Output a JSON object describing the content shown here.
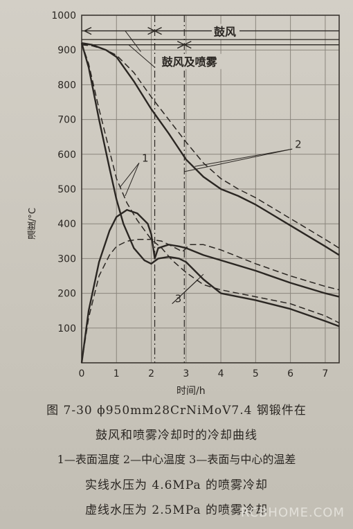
{
  "chart_data": {
    "type": "line",
    "xlabel": "时间/h",
    "ylabel": "温度/°C",
    "xlim": [
      0,
      7.4
    ],
    "ylim": [
      0,
      1000
    ],
    "x_ticks": [
      "0",
      "1",
      "2",
      "3",
      "4",
      "5",
      "6",
      "7"
    ],
    "y_ticks": [
      "100",
      "200",
      "300",
      "400",
      "500",
      "600",
      "700",
      "800",
      "900",
      "1000"
    ],
    "grid": true,
    "phase_labels": {
      "blow": "鼓风",
      "blow_spray": "鼓风及喷雾"
    },
    "curve_labels": [
      "1",
      "2",
      "3"
    ],
    "series": [
      {
        "curve": "1",
        "style": "solid",
        "x": [
          0,
          0.2,
          0.5,
          0.8,
          1.0,
          1.2,
          1.5,
          1.8,
          2.0,
          2.2,
          2.5,
          2.8,
          3.0,
          3.5,
          4.0,
          5.0,
          6.0,
          7.0,
          7.4
        ],
        "y": [
          920,
          850,
          700,
          560,
          470,
          400,
          330,
          295,
          285,
          300,
          305,
          300,
          290,
          240,
          200,
          180,
          155,
          120,
          105
        ]
      },
      {
        "curve": "1",
        "style": "dashed",
        "x": [
          0,
          0.2,
          0.5,
          0.8,
          1.0,
          1.3,
          1.6,
          2.0,
          2.3,
          2.6,
          3.0,
          3.5,
          4.0,
          5.0,
          6.0,
          7.0,
          7.4
        ],
        "y": [
          920,
          860,
          730,
          610,
          530,
          460,
          410,
          355,
          330,
          295,
          260,
          225,
          210,
          190,
          170,
          135,
          115
        ]
      },
      {
        "curve": "2",
        "style": "solid",
        "x": [
          0,
          0.3,
          0.7,
          1.0,
          1.5,
          2.0,
          2.5,
          3.0,
          3.5,
          4.0,
          4.5,
          5.0,
          5.5,
          6.0,
          6.5,
          7.0,
          7.4
        ],
        "y": [
          920,
          915,
          900,
          880,
          810,
          730,
          660,
          585,
          535,
          500,
          480,
          455,
          425,
          395,
          365,
          335,
          310
        ]
      },
      {
        "curve": "2",
        "style": "dashed",
        "x": [
          0,
          0.3,
          0.7,
          1.0,
          1.5,
          2.0,
          2.5,
          3.0,
          3.5,
          4.0,
          4.5,
          5.0,
          5.5,
          6.0,
          6.5,
          7.0,
          7.4
        ],
        "y": [
          915,
          912,
          900,
          885,
          835,
          765,
          700,
          635,
          575,
          530,
          500,
          475,
          445,
          415,
          385,
          355,
          330
        ]
      },
      {
        "curve": "3",
        "style": "solid",
        "x": [
          0,
          0.2,
          0.5,
          0.8,
          1.0,
          1.3,
          1.6,
          1.9,
          2.0,
          2.1,
          2.2,
          2.5,
          2.8,
          3.0,
          3.5,
          4.0,
          5.0,
          6.0,
          7.0,
          7.4
        ],
        "y": [
          0,
          150,
          290,
          380,
          420,
          440,
          430,
          400,
          370,
          300,
          330,
          340,
          335,
          330,
          310,
          295,
          265,
          230,
          200,
          190
        ]
      },
      {
        "curve": "3",
        "style": "dashed",
        "x": [
          0,
          0.2,
          0.5,
          0.8,
          1.0,
          1.3,
          1.6,
          2.0,
          2.3,
          2.6,
          2.9,
          3.1,
          3.5,
          4.0,
          5.0,
          6.0,
          7.0,
          7.4
        ],
        "y": [
          0,
          130,
          250,
          310,
          335,
          350,
          355,
          355,
          350,
          335,
          320,
          340,
          340,
          325,
          285,
          250,
          220,
          210
        ]
      }
    ]
  },
  "caption": {
    "line1": "图 7-30  ϕ950mm28CrNiMoV7.4 钢锻件在",
    "line2": "鼓风和喷雾冷却时的冷却曲线",
    "line3": "1—表面温度   2—中心温度   3—表面与中心的温差",
    "line4": "实线水压为 4.6MPa 的喷雾冷却",
    "line5": "虚线水压为 2.5MPa 的喷雾冷却"
  },
  "watermark": "RCBHOME.COM"
}
